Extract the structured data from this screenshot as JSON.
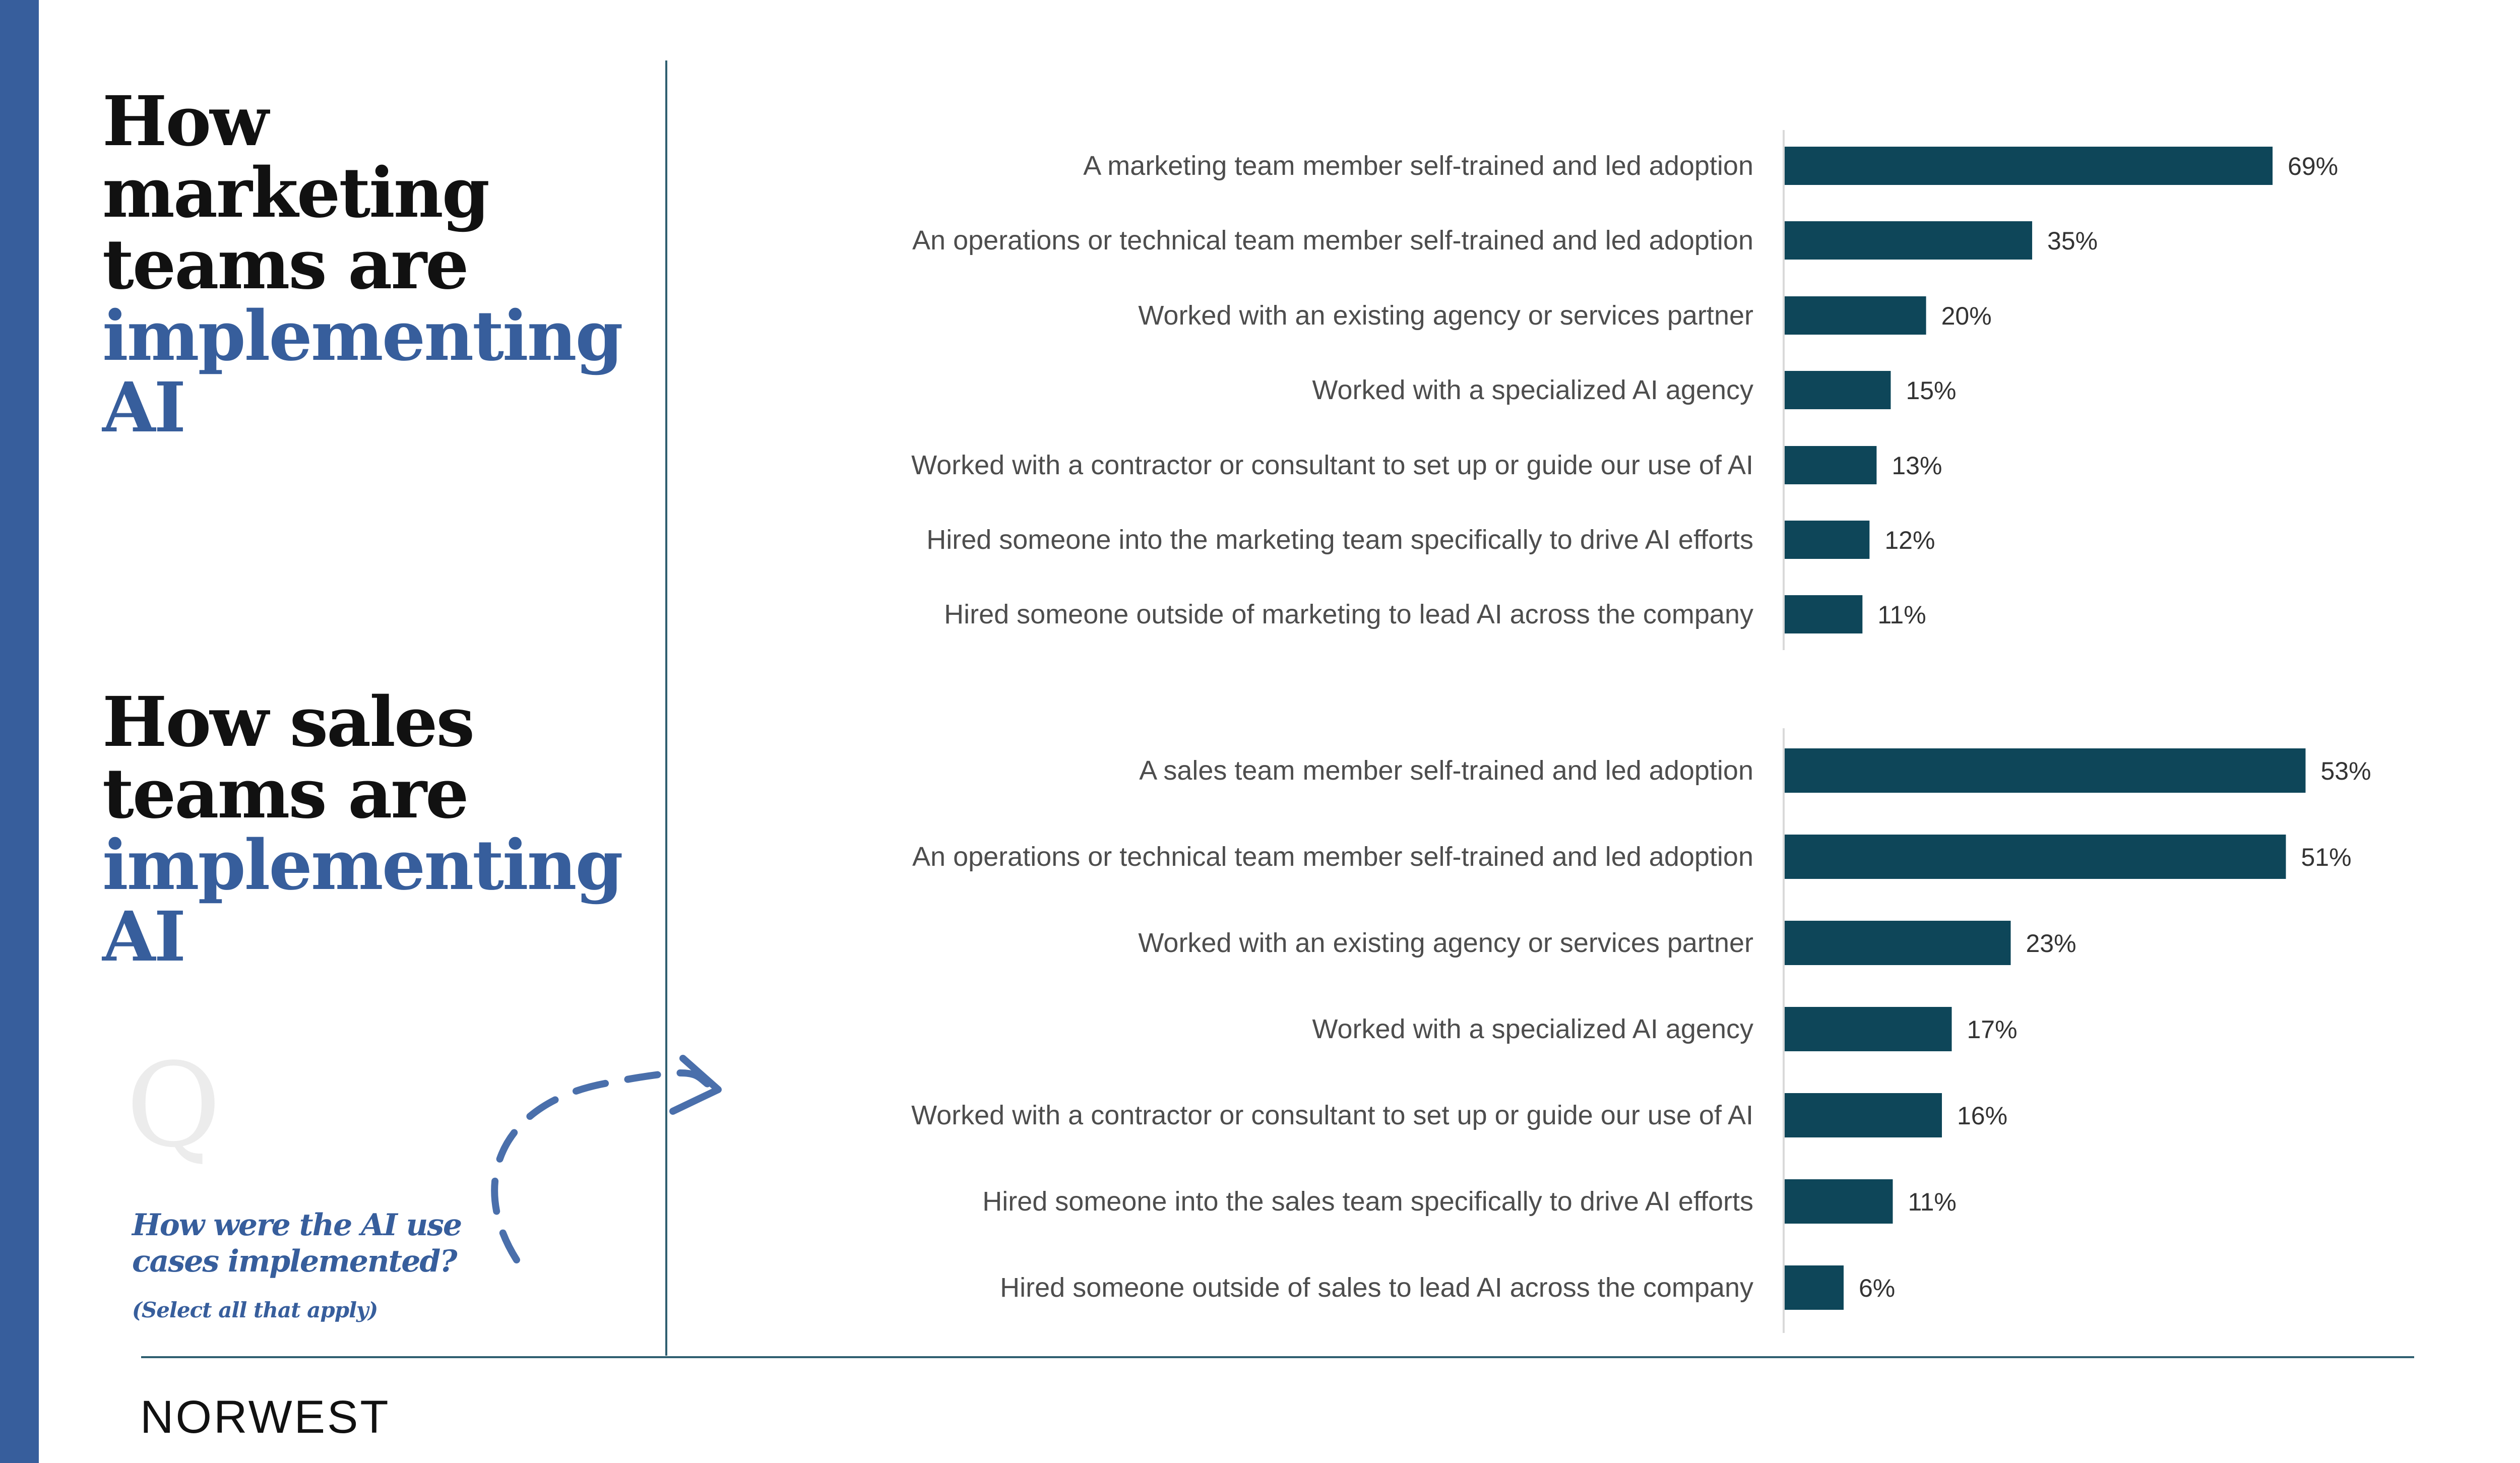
{
  "brand": {
    "name": "NORWEST",
    "accent": "#375e9c",
    "bar_color": "#0e4659"
  },
  "titles": {
    "marketing": {
      "dark": [
        "How",
        "marketing",
        "teams are"
      ],
      "blue": [
        "implementing",
        "AI"
      ]
    },
    "sales": {
      "dark": [
        "How sales",
        "teams are"
      ],
      "blue": [
        "implementing",
        "AI"
      ]
    }
  },
  "question": {
    "glyph": "Q",
    "text": "How were the AI use cases implemented?",
    "note": "(Select all that apply)"
  },
  "chart_data": [
    {
      "type": "bar",
      "orientation": "horizontal",
      "unit": "%",
      "categories": [
        "A marketing team member self-trained and led adoption",
        "An operations or technical team member self-trained and led adoption",
        "Worked with an existing agency or services partner",
        "Worked with a specialized AI agency",
        "Worked with a contractor or consultant to set up or guide our use of AI",
        "Hired someone into the marketing team specifically to drive AI efforts",
        "Hired someone outside of marketing to lead AI across the company"
      ],
      "values": [
        69,
        35,
        20,
        15,
        13,
        12,
        11
      ],
      "labels": [
        "69%",
        "35%",
        "20%",
        "15%",
        "13%",
        "12%",
        "11%"
      ],
      "grid": false
    },
    {
      "type": "bar",
      "orientation": "horizontal",
      "unit": "%",
      "categories": [
        "A sales team member self-trained and led adoption",
        "An operations or technical team member self-trained and led adoption",
        "Worked with an existing agency or services partner",
        "Worked with a specialized AI agency",
        "Worked with a contractor or consultant to set up or guide our use of AI",
        "Hired someone into the sales team specifically to drive AI efforts",
        "Hired someone outside of sales to lead AI across the company"
      ],
      "values": [
        53,
        51,
        23,
        17,
        16,
        11,
        6
      ],
      "labels": [
        "53%",
        "51%",
        "23%",
        "17%",
        "16%",
        "11%",
        "6%"
      ],
      "grid": false
    }
  ]
}
